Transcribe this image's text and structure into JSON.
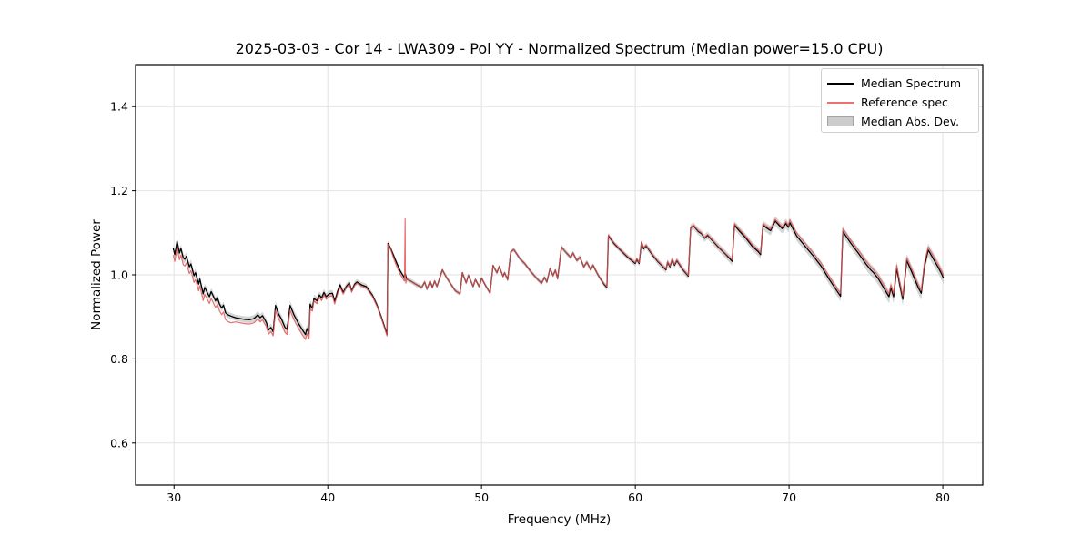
{
  "figure": {
    "background": "#ffffff",
    "spine_color": "#000000",
    "grid_color": "#e2e2e2",
    "tick_color": "#000000"
  },
  "legend": {
    "items": [
      {
        "label": "Median Spectrum",
        "type": "line",
        "color": "#000000"
      },
      {
        "label": "Reference spec",
        "type": "line",
        "color": "#ee6f6f"
      },
      {
        "label": "Median Abs. Dev.",
        "type": "patch",
        "color": "#cccccc",
        "edge": "#a3a3a3"
      }
    ]
  },
  "chart_data": {
    "type": "line",
    "title": "2025-03-03 - Cor 14 - LWA309 - Pol YY - Normalized Spectrum (Median power=15.0 CPU)",
    "xlabel": "Frequency (MHz)",
    "ylabel": "Normalized Power",
    "xlim": [
      27.5,
      82.6
    ],
    "ylim": [
      0.5,
      1.5
    ],
    "xticks": [
      30,
      40,
      50,
      60,
      70,
      80
    ],
    "xtick_labels": [
      "30",
      "40",
      "50",
      "60",
      "70",
      "80"
    ],
    "yticks": [
      0.6,
      0.8,
      1.0,
      1.2,
      1.4
    ],
    "ytick_labels": [
      "0.6",
      "0.8",
      "1.0",
      "1.2",
      "1.4"
    ],
    "grid": true,
    "legend_position": "upper right",
    "series": [
      {
        "name": "Median Spectrum",
        "color": "#000000",
        "line_width": 1.3,
        "points": [
          [
            29.95,
            1.063
          ],
          [
            30.05,
            1.048
          ],
          [
            30.2,
            1.08
          ],
          [
            30.35,
            1.052
          ],
          [
            30.45,
            1.063
          ],
          [
            30.6,
            1.04
          ],
          [
            30.7,
            1.037
          ],
          [
            30.8,
            1.044
          ],
          [
            31.0,
            1.019
          ],
          [
            31.1,
            1.026
          ],
          [
            31.3,
            0.998
          ],
          [
            31.4,
            1.005
          ],
          [
            31.6,
            0.978
          ],
          [
            31.68,
            0.99
          ],
          [
            31.9,
            0.955
          ],
          [
            32.0,
            0.97
          ],
          [
            32.3,
            0.948
          ],
          [
            32.42,
            0.96
          ],
          [
            32.7,
            0.938
          ],
          [
            32.82,
            0.946
          ],
          [
            32.95,
            0.931
          ],
          [
            33.1,
            0.921
          ],
          [
            33.22,
            0.928
          ],
          [
            33.35,
            0.91
          ],
          [
            33.5,
            0.905
          ],
          [
            33.7,
            0.902
          ],
          [
            34.0,
            0.898
          ],
          [
            34.3,
            0.896
          ],
          [
            34.6,
            0.894
          ],
          [
            34.9,
            0.893
          ],
          [
            35.2,
            0.896
          ],
          [
            35.45,
            0.905
          ],
          [
            35.6,
            0.898
          ],
          [
            35.75,
            0.903
          ],
          [
            36.0,
            0.887
          ],
          [
            36.15,
            0.869
          ],
          [
            36.3,
            0.875
          ],
          [
            36.45,
            0.865
          ],
          [
            36.6,
            0.927
          ],
          [
            36.8,
            0.907
          ],
          [
            37.0,
            0.894
          ],
          [
            37.2,
            0.876
          ],
          [
            37.35,
            0.87
          ],
          [
            37.55,
            0.927
          ],
          [
            37.8,
            0.905
          ],
          [
            38.1,
            0.884
          ],
          [
            38.35,
            0.869
          ],
          [
            38.55,
            0.858
          ],
          [
            38.65,
            0.872
          ],
          [
            38.78,
            0.86
          ],
          [
            38.85,
            0.93
          ],
          [
            39.0,
            0.92
          ],
          [
            39.1,
            0.944
          ],
          [
            39.3,
            0.938
          ],
          [
            39.45,
            0.952
          ],
          [
            39.6,
            0.945
          ],
          [
            39.75,
            0.958
          ],
          [
            39.9,
            0.948
          ],
          [
            40.1,
            0.955
          ],
          [
            40.3,
            0.956
          ],
          [
            40.45,
            0.937
          ],
          [
            40.65,
            0.962
          ],
          [
            40.8,
            0.976
          ],
          [
            41.0,
            0.958
          ],
          [
            41.2,
            0.972
          ],
          [
            41.4,
            0.981
          ],
          [
            41.55,
            0.962
          ],
          [
            41.75,
            0.978
          ],
          [
            41.9,
            0.983
          ],
          [
            42.2,
            0.976
          ],
          [
            42.5,
            0.972
          ],
          [
            42.9,
            0.952
          ],
          [
            43.2,
            0.928
          ],
          [
            43.5,
            0.898
          ],
          [
            43.85,
            0.858
          ],
          [
            43.92,
            1.075
          ],
          [
            44.1,
            1.062
          ],
          [
            44.4,
            1.035
          ],
          [
            44.7,
            1.01
          ],
          [
            44.95,
            0.995
          ],
          [
            45.05,
            1.002
          ],
          [
            45.12,
            0.99
          ],
          [
            45.3,
            0.987
          ],
          [
            45.5,
            0.983
          ],
          [
            45.7,
            0.978
          ],
          [
            45.9,
            0.974
          ],
          [
            46.1,
            0.97
          ],
          [
            46.3,
            0.983
          ],
          [
            46.45,
            0.966
          ],
          [
            46.65,
            0.985
          ],
          [
            46.8,
            0.97
          ],
          [
            46.95,
            0.985
          ],
          [
            47.1,
            0.972
          ],
          [
            47.45,
            1.012
          ],
          [
            47.7,
            0.995
          ],
          [
            48.0,
            0.978
          ],
          [
            48.3,
            0.962
          ],
          [
            48.6,
            0.955
          ],
          [
            48.75,
            1.005
          ],
          [
            49.0,
            0.981
          ],
          [
            49.15,
            0.999
          ],
          [
            49.45,
            0.972
          ],
          [
            49.6,
            0.989
          ],
          [
            49.85,
            0.972
          ],
          [
            50.0,
            0.992
          ],
          [
            50.3,
            0.972
          ],
          [
            50.55,
            0.957
          ],
          [
            50.75,
            1.022
          ],
          [
            51.0,
            1.005
          ],
          [
            51.15,
            1.02
          ],
          [
            51.4,
            0.996
          ],
          [
            51.5,
            1.005
          ],
          [
            51.7,
            0.988
          ],
          [
            51.9,
            1.055
          ],
          [
            52.1,
            1.06
          ],
          [
            52.5,
            1.038
          ],
          [
            52.8,
            1.027
          ],
          [
            53.2,
            1.008
          ],
          [
            53.6,
            0.991
          ],
          [
            53.9,
            0.98
          ],
          [
            54.1,
            0.994
          ],
          [
            54.25,
            0.983
          ],
          [
            54.45,
            1.015
          ],
          [
            54.65,
            0.998
          ],
          [
            54.8,
            1.011
          ],
          [
            54.95,
            0.991
          ],
          [
            55.2,
            1.066
          ],
          [
            55.5,
            1.053
          ],
          [
            55.8,
            1.041
          ],
          [
            55.95,
            1.052
          ],
          [
            56.2,
            1.034
          ],
          [
            56.4,
            1.042
          ],
          [
            56.65,
            1.019
          ],
          [
            56.85,
            1.03
          ],
          [
            57.1,
            1.012
          ],
          [
            57.25,
            1.023
          ],
          [
            57.6,
            0.998
          ],
          [
            58.0,
            0.976
          ],
          [
            58.15,
            0.97
          ],
          [
            58.25,
            1.093
          ],
          [
            58.6,
            1.075
          ],
          [
            59.0,
            1.06
          ],
          [
            59.5,
            1.042
          ],
          [
            59.8,
            1.033
          ],
          [
            60.0,
            1.027
          ],
          [
            60.1,
            1.037
          ],
          [
            60.25,
            1.027
          ],
          [
            60.4,
            1.077
          ],
          [
            60.55,
            1.062
          ],
          [
            60.7,
            1.069
          ],
          [
            61.1,
            1.048
          ],
          [
            61.5,
            1.03
          ],
          [
            61.8,
            1.019
          ],
          [
            62.0,
            1.012
          ],
          [
            62.1,
            1.03
          ],
          [
            62.25,
            1.019
          ],
          [
            62.4,
            1.037
          ],
          [
            62.55,
            1.023
          ],
          [
            62.7,
            1.034
          ],
          [
            63.1,
            1.012
          ],
          [
            63.45,
            0.997
          ],
          [
            63.6,
            1.112
          ],
          [
            63.8,
            1.116
          ],
          [
            64.1,
            1.103
          ],
          [
            64.3,
            1.098
          ],
          [
            64.5,
            1.087
          ],
          [
            64.7,
            1.094
          ],
          [
            65.0,
            1.082
          ],
          [
            65.4,
            1.066
          ],
          [
            65.9,
            1.048
          ],
          [
            66.3,
            1.032
          ],
          [
            66.45,
            1.118
          ],
          [
            66.8,
            1.103
          ],
          [
            67.2,
            1.087
          ],
          [
            67.6,
            1.068
          ],
          [
            68.0,
            1.055
          ],
          [
            68.15,
            1.048
          ],
          [
            68.3,
            1.118
          ],
          [
            68.6,
            1.11
          ],
          [
            68.8,
            1.105
          ],
          [
            69.1,
            1.128
          ],
          [
            69.35,
            1.118
          ],
          [
            69.55,
            1.11
          ],
          [
            69.8,
            1.122
          ],
          [
            69.95,
            1.113
          ],
          [
            70.05,
            1.124
          ],
          [
            70.5,
            1.092
          ],
          [
            71.0,
            1.07
          ],
          [
            71.6,
            1.044
          ],
          [
            72.1,
            1.02
          ],
          [
            72.6,
            0.99
          ],
          [
            73.0,
            0.968
          ],
          [
            73.35,
            0.949
          ],
          [
            73.5,
            1.103
          ],
          [
            74.0,
            1.076
          ],
          [
            74.5,
            1.052
          ],
          [
            75.0,
            1.026
          ],
          [
            75.3,
            1.012
          ],
          [
            75.5,
            1.005
          ],
          [
            75.8,
            0.991
          ],
          [
            76.2,
            0.966
          ],
          [
            76.5,
            0.948
          ],
          [
            76.62,
            0.969
          ],
          [
            76.8,
            0.948
          ],
          [
            77.0,
            1.016
          ],
          [
            77.2,
            0.976
          ],
          [
            77.4,
            0.942
          ],
          [
            77.65,
            1.034
          ],
          [
            78.0,
            1.005
          ],
          [
            78.4,
            0.97
          ],
          [
            78.6,
            0.956
          ],
          [
            78.8,
            1.02
          ],
          [
            79.05,
            1.059
          ],
          [
            79.4,
            1.037
          ],
          [
            79.7,
            1.018
          ],
          [
            79.95,
            1.0
          ],
          [
            80.05,
            0.992
          ]
        ]
      },
      {
        "name": "Reference spec",
        "color": "#e25555",
        "line_width": 1.2,
        "opacity": 0.85,
        "offset_from_median_segments": [
          [
            27.5,
            -0.016
          ],
          [
            34.0,
            -0.01
          ],
          [
            36.5,
            -0.012
          ],
          [
            39.0,
            -0.006
          ],
          [
            41.0,
            -0.003
          ],
          [
            44.3,
            -0.008
          ],
          [
            45.12,
            0.0
          ],
          [
            58.0,
            0.002
          ],
          [
            66.0,
            0.004
          ],
          [
            70.0,
            0.007
          ]
        ],
        "spike_points": [
          [
            44.99,
            0.985
          ],
          [
            45.03,
            1.133
          ],
          [
            45.08,
            0.98
          ]
        ]
      }
    ],
    "band": {
      "name": "Median Abs. Dev.",
      "color": "#bfbfbf",
      "opacity": 0.65,
      "half_width_keypoints": [
        [
          27.5,
          0.008
        ],
        [
          31.0,
          0.01
        ],
        [
          34.0,
          0.007
        ],
        [
          38.0,
          0.011
        ],
        [
          40.0,
          0.008
        ],
        [
          44.0,
          0.006
        ],
        [
          50.0,
          0.005
        ],
        [
          58.0,
          0.006
        ],
        [
          63.0,
          0.008
        ],
        [
          67.0,
          0.01
        ],
        [
          70.0,
          0.012
        ],
        [
          74.0,
          0.012
        ],
        [
          77.0,
          0.016
        ],
        [
          80.1,
          0.015
        ]
      ]
    }
  }
}
